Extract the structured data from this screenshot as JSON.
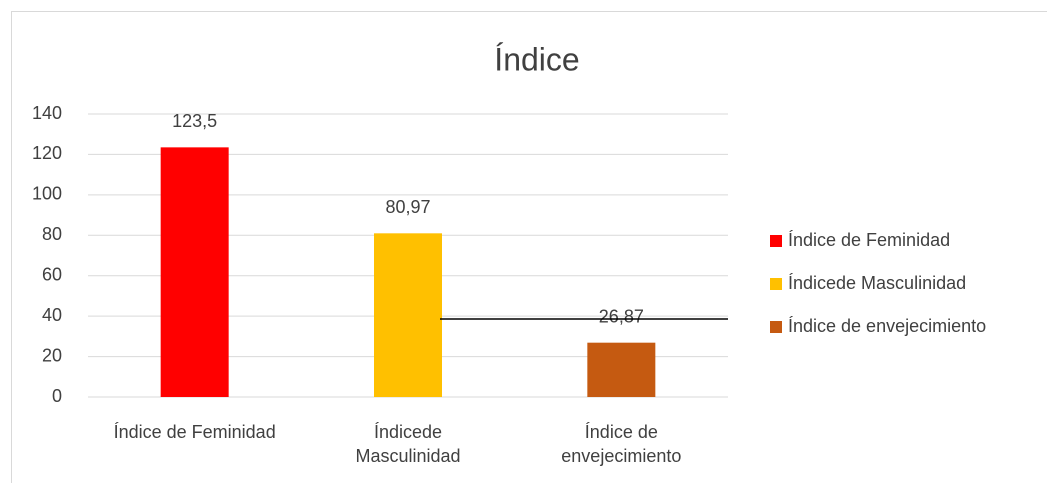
{
  "chart_data": {
    "type": "bar",
    "title": "Índice",
    "categories": [
      "Índice de Feminidad",
      "Índicede Masculinidad",
      "Índice de envejecimiento"
    ],
    "series": [
      {
        "name": "Índice de Feminidad",
        "color": "#ff0000",
        "values": [
          123.5,
          null,
          null
        ],
        "value_labels": [
          "123,5",
          null,
          null
        ]
      },
      {
        "name": "Índicede Masculinidad",
        "color": "#ffc000",
        "values": [
          null,
          80.97,
          null
        ],
        "value_labels": [
          null,
          "80,97",
          null
        ]
      },
      {
        "name": "Índice de envejecimiento",
        "color": "#c55a11",
        "values": [
          null,
          null,
          26.87
        ],
        "value_labels": [
          null,
          null,
          "26,87"
        ]
      }
    ],
    "ylim": [
      0,
      140
    ],
    "yticks": [
      0,
      20,
      40,
      60,
      80,
      100,
      120,
      140
    ],
    "grid": true,
    "legend": "right"
  }
}
